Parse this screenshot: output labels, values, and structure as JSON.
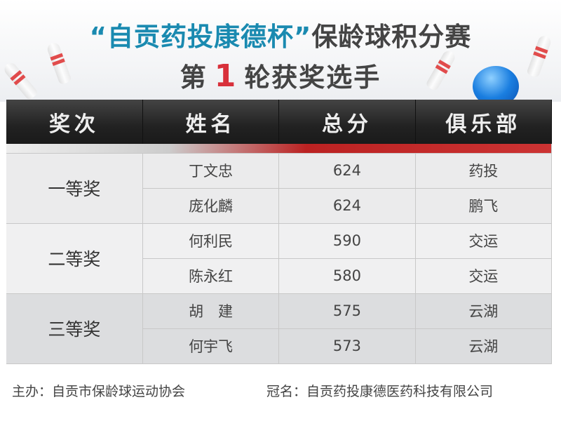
{
  "title": {
    "quoted": "“自贡药投康德杯”",
    "rest": "保龄球积分赛"
  },
  "subtitle": {
    "pre": "第",
    "round": "1",
    "post": "轮获奖选手"
  },
  "colors": {
    "title_blue": "#1a8ab0",
    "round_red": "#d8303a",
    "header_bg": "#222222"
  },
  "table": {
    "headers": [
      "奖次",
      "姓名",
      "总分",
      "俱乐部"
    ],
    "groups": [
      {
        "prize": "一等奖",
        "rows": [
          {
            "name": "丁文忠",
            "score": "624",
            "club": "药投"
          },
          {
            "name": "庞化麟",
            "score": "624",
            "club": "鹏飞"
          }
        ]
      },
      {
        "prize": "二等奖",
        "rows": [
          {
            "name": "何利民",
            "score": "590",
            "club": "交运"
          },
          {
            "name": "陈永红",
            "score": "580",
            "club": "交运"
          }
        ]
      },
      {
        "prize": "三等奖",
        "rows": [
          {
            "name": "胡　建",
            "score": "575",
            "club": "云湖"
          },
          {
            "name": "何宇飞",
            "score": "573",
            "club": "云湖"
          }
        ]
      }
    ]
  },
  "footer": {
    "host": "主办：自贡市保龄球运动协会",
    "sponsor": "冠名：自贡药投康德医药科技有限公司"
  }
}
